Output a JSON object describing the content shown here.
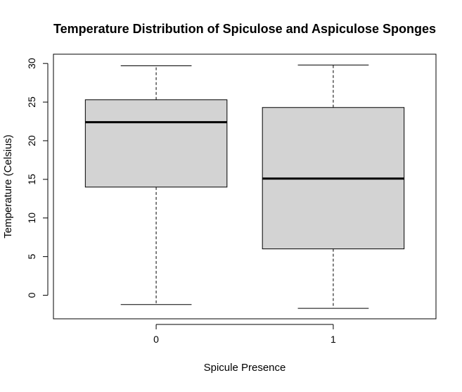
{
  "chart_data": {
    "type": "box",
    "title": "Temperature Distribution of Spiculose and Aspiculose Sponges",
    "xlabel": "Spicule Presence",
    "ylabel": "Temperature (Celsius)",
    "categories": [
      "0",
      "1"
    ],
    "boxes": [
      {
        "category": "0",
        "whisker_low": -1.2,
        "q1": 14.0,
        "median": 22.4,
        "q3": 25.3,
        "whisker_high": 29.7
      },
      {
        "category": "1",
        "whisker_low": -1.7,
        "q1": 6.0,
        "median": 15.1,
        "q3": 24.3,
        "whisker_high": 29.8
      }
    ],
    "yticks": [
      0,
      5,
      10,
      15,
      20,
      25,
      30
    ],
    "ylim": [
      -3.05,
      31.2
    ],
    "grid": false,
    "box_fill": "#d3d3d3",
    "line_color": "#000000"
  }
}
